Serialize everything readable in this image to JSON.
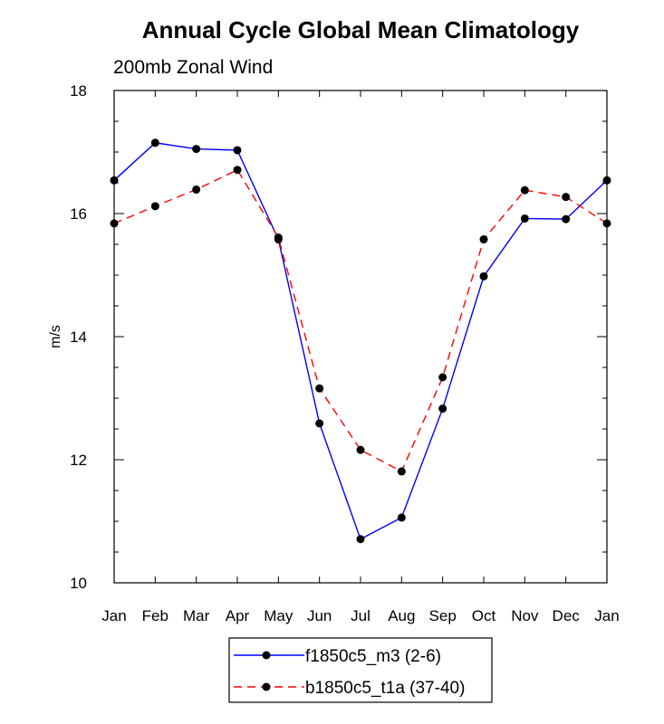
{
  "chart_data": {
    "type": "line",
    "title": "Annual Cycle Global Mean Climatology",
    "subtitle": "200mb Zonal Wind",
    "xlabel": "",
    "ylabel": "m/s",
    "categories": [
      "Jan",
      "Feb",
      "Mar",
      "Apr",
      "May",
      "Jun",
      "Jul",
      "Aug",
      "Sep",
      "Oct",
      "Nov",
      "Dec",
      "Jan"
    ],
    "ylim": [
      10,
      18
    ],
    "yticks": [
      "10",
      "12",
      "14",
      "16",
      "18"
    ],
    "grid": false,
    "legend_position": "bottom",
    "series": [
      {
        "name": "f1850c5_m3 (2-6)",
        "color": "#0000ff",
        "dash": "solid",
        "values": [
          16.54,
          17.15,
          17.05,
          17.03,
          15.58,
          12.59,
          10.71,
          11.06,
          12.83,
          14.98,
          15.92,
          15.91,
          16.54
        ]
      },
      {
        "name": "b1850c5_t1a (37-40)",
        "color": "#ff0000",
        "dash": "dashed",
        "values": [
          15.84,
          16.12,
          16.39,
          16.71,
          15.61,
          13.16,
          12.16,
          11.81,
          13.34,
          15.58,
          16.38,
          16.27,
          15.84
        ]
      }
    ]
  }
}
